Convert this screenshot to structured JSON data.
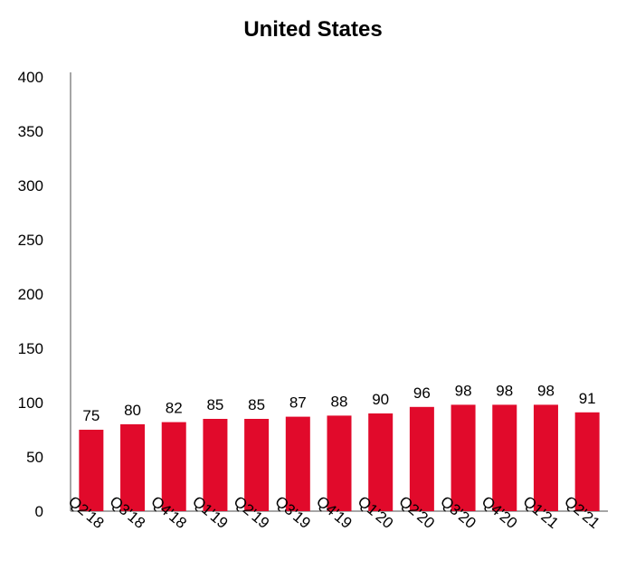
{
  "chart_data": {
    "type": "bar",
    "title": "United States",
    "categories": [
      "Q2'18",
      "Q3'18",
      "Q4'18",
      "Q1'19",
      "Q2'19",
      "Q3'19",
      "Q4'19",
      "Q1'20",
      "Q2'20",
      "Q3'20",
      "Q4'20",
      "Q1'21",
      "Q2'21"
    ],
    "values": [
      75,
      80,
      82,
      85,
      85,
      87,
      88,
      90,
      96,
      98,
      98,
      98,
      91
    ],
    "y_ticks": [
      "0",
      "50",
      "100",
      "150",
      "200",
      "250",
      "300",
      "350",
      "400"
    ],
    "ylim": [
      0,
      400
    ],
    "xlabel": "",
    "ylabel": "",
    "grid": false,
    "legend": "none",
    "bar_color": "#e10a2b"
  }
}
